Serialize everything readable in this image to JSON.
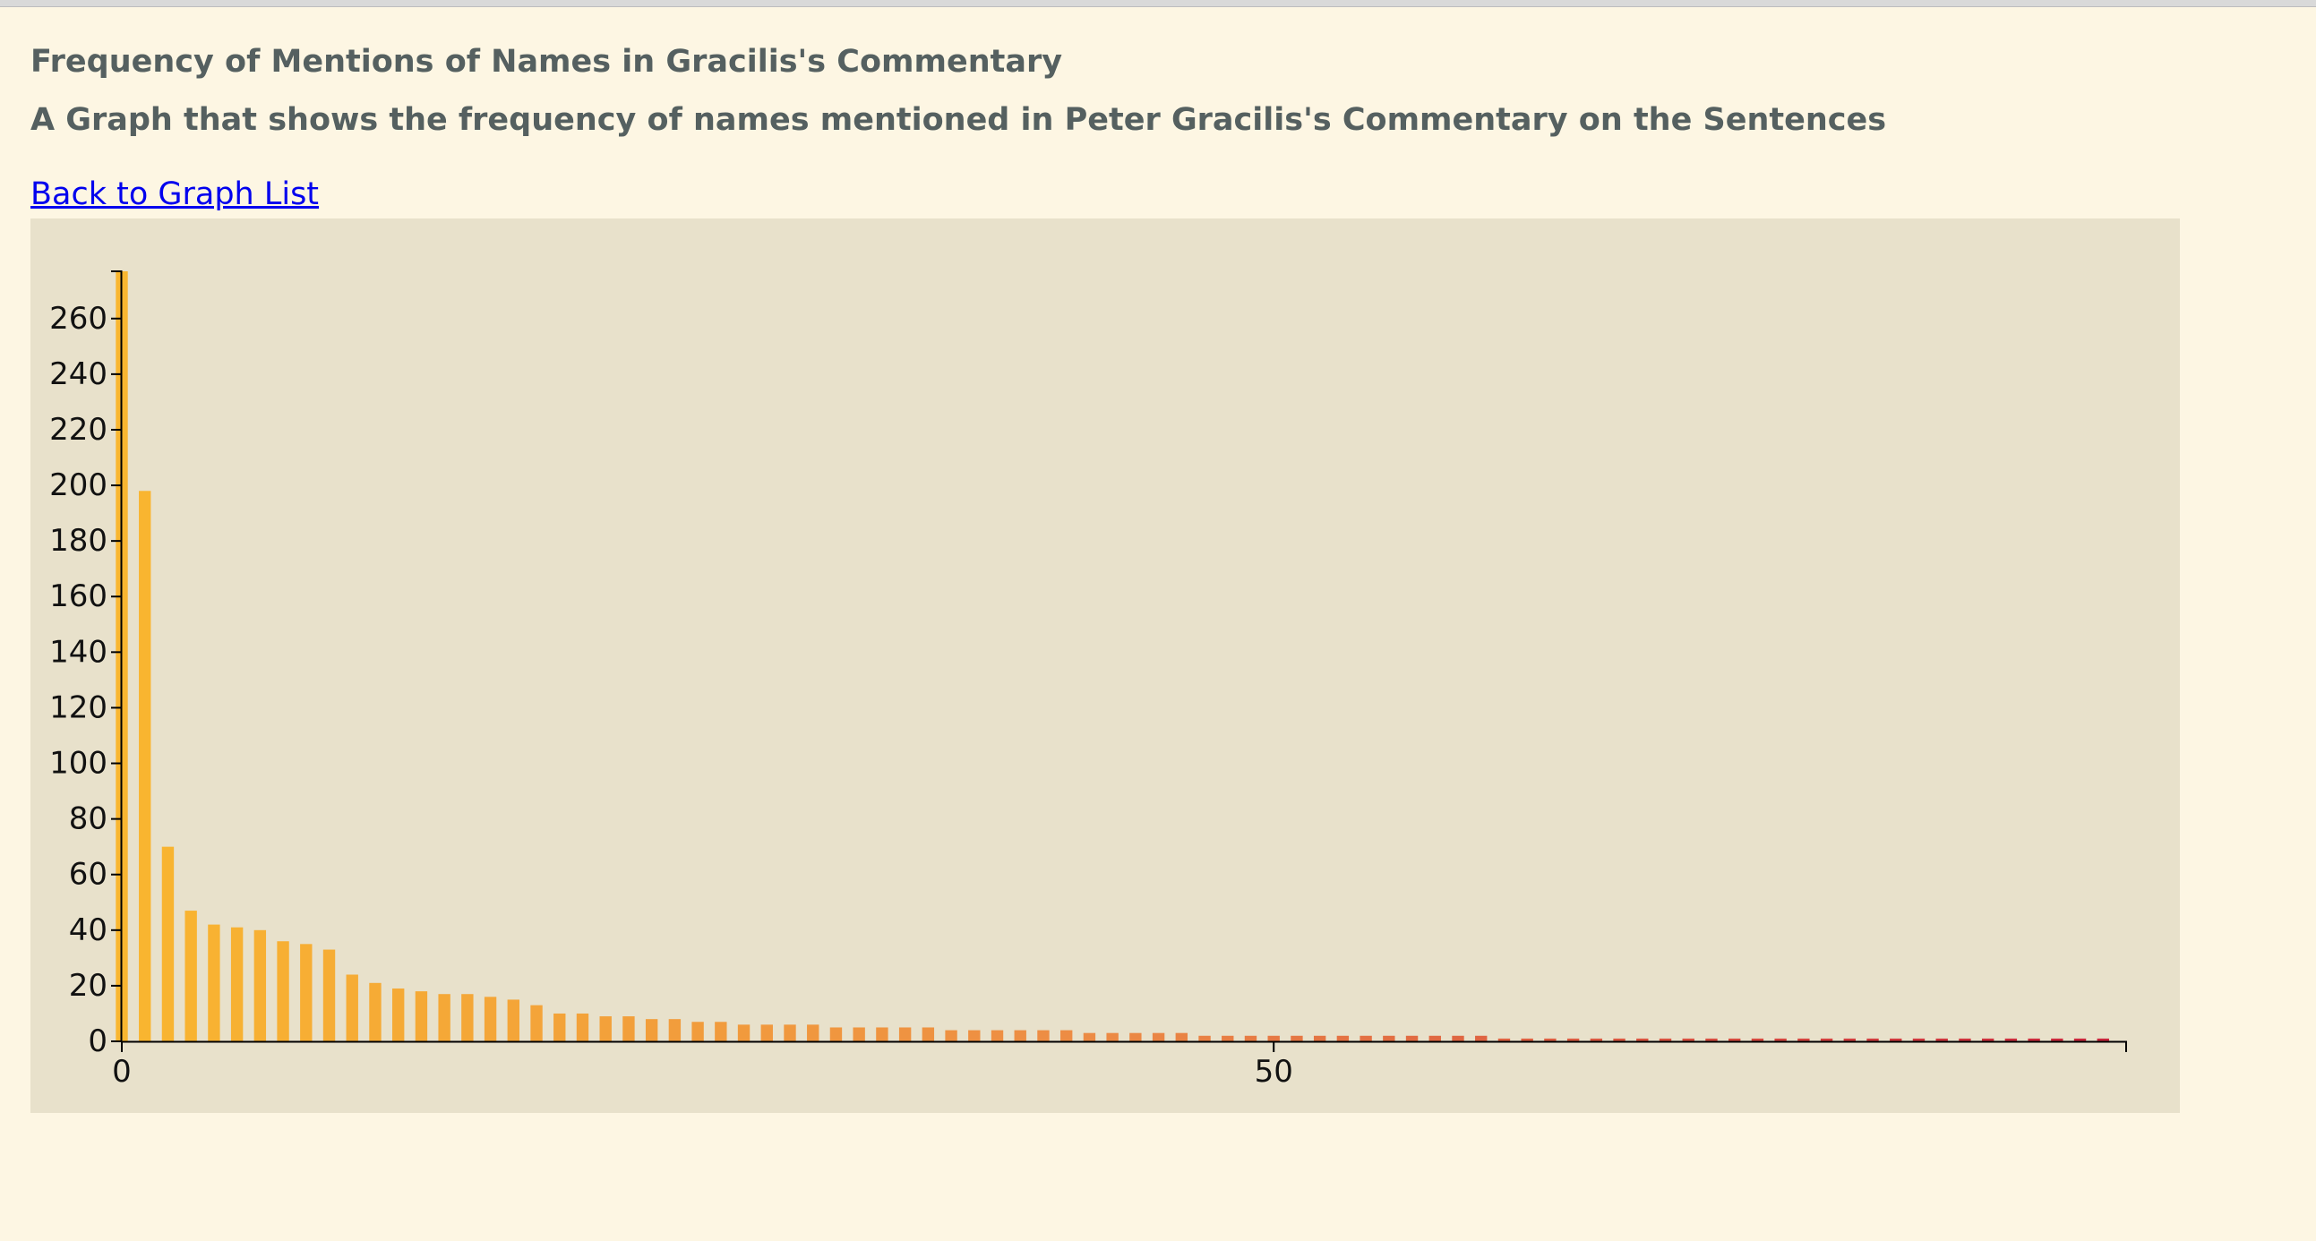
{
  "page": {
    "title": "Frequency of Mentions of Names in Gracilis's Commentary",
    "subtitle": "A Graph that shows the frequency of names mentioned in Peter Gracilis's Commentary on the Sentences",
    "back_link": "Back to Graph List"
  },
  "colors": {
    "background": "#fdf6e3",
    "panel": "#e8e1cb",
    "text": "#556060",
    "link": "#0000ee",
    "bar_start": "#f9b630",
    "bar_mid": "#ec8a45",
    "bar_end": "#c8243c"
  },
  "chart_data": {
    "type": "bar",
    "title": "",
    "xlabel": "",
    "ylabel": "",
    "x": [
      0,
      1,
      2,
      3,
      4,
      5,
      6,
      7,
      8,
      9,
      10,
      11,
      12,
      13,
      14,
      15,
      16,
      17,
      18,
      19,
      20,
      21,
      22,
      23,
      24,
      25,
      26,
      27,
      28,
      29,
      30,
      31,
      32,
      33,
      34,
      35,
      36,
      37,
      38,
      39,
      40,
      41,
      42,
      43,
      44,
      45,
      46,
      47,
      48,
      49,
      50,
      51,
      52,
      53,
      54,
      55,
      56,
      57,
      58,
      59,
      60,
      61,
      62,
      63,
      64,
      65,
      66,
      67,
      68,
      69,
      70,
      71,
      72,
      73,
      74,
      75,
      76,
      77,
      78,
      79,
      80,
      81,
      82,
      83,
      84,
      85,
      86
    ],
    "values": [
      277,
      198,
      70,
      47,
      42,
      41,
      40,
      36,
      35,
      33,
      24,
      21,
      19,
      18,
      17,
      17,
      16,
      15,
      13,
      10,
      10,
      9,
      9,
      8,
      8,
      7,
      7,
      6,
      6,
      6,
      6,
      5,
      5,
      5,
      5,
      5,
      4,
      4,
      4,
      4,
      4,
      4,
      3,
      3,
      3,
      3,
      3,
      2,
      2,
      2,
      2,
      2,
      2,
      2,
      2,
      2,
      2,
      2,
      2,
      2,
      1,
      1,
      1,
      1,
      1,
      1,
      1,
      1,
      1,
      1,
      1,
      1,
      1,
      1,
      1,
      1,
      1,
      1,
      1,
      1,
      1,
      1,
      1,
      1,
      1,
      1,
      1
    ],
    "xlim": [
      0,
      87
    ],
    "ylim": [
      0,
      277
    ],
    "x_ticks": [
      0,
      50
    ],
    "x_tick_labels": [
      "0",
      "50"
    ],
    "y_ticks": [
      0,
      20,
      40,
      60,
      80,
      100,
      120,
      140,
      160,
      180,
      200,
      220,
      240,
      260
    ],
    "y_tick_labels": [
      "0",
      "20",
      "40",
      "60",
      "80",
      "100",
      "120",
      "140",
      "160",
      "180",
      "200",
      "220",
      "240",
      "260"
    ],
    "grid": false,
    "legend": "none"
  }
}
